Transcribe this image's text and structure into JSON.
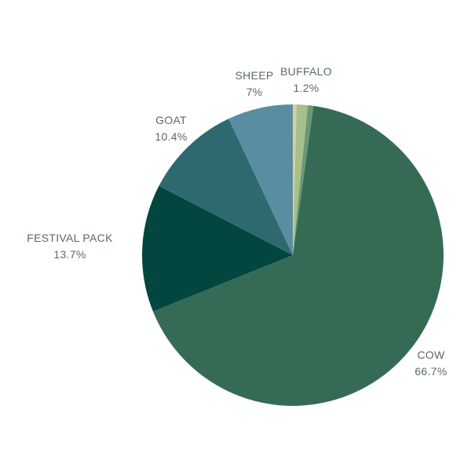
{
  "chart_data": {
    "type": "pie",
    "start_angle_deg": 0,
    "direction": "clockwise",
    "label_color": "#5a6b63",
    "slices": [
      {
        "label": "",
        "pct_text": "",
        "value": 0.4,
        "color": "#d9cf98"
      },
      {
        "label": "",
        "pct_text": "",
        "value": 1.2,
        "color": "#a8bf8c"
      },
      {
        "label": "",
        "pct_text": "",
        "value": 0.6,
        "color": "#6a9776"
      },
      {
        "label": "COW",
        "pct_text": "66.7%",
        "value": 66.7,
        "color": "#356b55"
      },
      {
        "label": "FESTIVAL PACK",
        "pct_text": "13.7%",
        "value": 13.7,
        "color": "#02463f"
      },
      {
        "label": "GOAT",
        "pct_text": "10.4%",
        "value": 10.4,
        "color": "#2e6970"
      },
      {
        "label": "SHEEP",
        "pct_text": "7%",
        "value": 7.0,
        "color": "#5a8da2"
      }
    ],
    "annotations": [
      {
        "label": "BUFFALO",
        "pct_text": "1.2%"
      }
    ]
  }
}
